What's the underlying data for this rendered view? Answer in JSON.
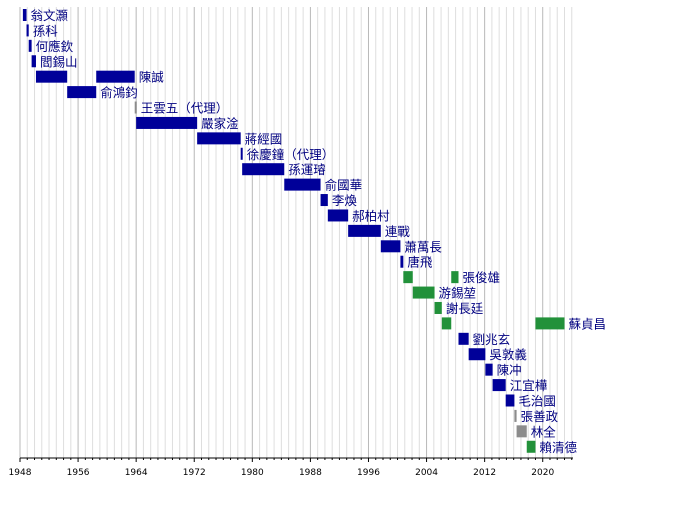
{
  "chart_data": {
    "type": "gantt",
    "title": "",
    "xlabel": "",
    "ylabel": "",
    "xlim": [
      1948,
      2024
    ],
    "x_ticks": [
      1948,
      1956,
      1964,
      1972,
      1980,
      1988,
      1996,
      2004,
      2012,
      2020
    ],
    "grid": "vertical, yearly",
    "legend": "none",
    "colors": {
      "kmt": "#000099",
      "dpp": "#22913a",
      "acting": "#8c8c8c",
      "label": "#000080"
    },
    "rows": [
      {
        "name": "翁文灝",
        "start": 1948.4,
        "end": 1948.9,
        "party": "kmt"
      },
      {
        "name": "孫科",
        "start": 1948.9,
        "end": 1949.2,
        "party": "kmt"
      },
      {
        "name": "何應欽",
        "start": 1949.2,
        "end": 1949.6,
        "party": "kmt"
      },
      {
        "name": "閻錫山",
        "start": 1949.6,
        "end": 1950.2,
        "party": "kmt"
      },
      {
        "name": "陳誠",
        "segments": [
          [
            1950.2,
            1954.5
          ],
          [
            1958.5,
            1963.8
          ]
        ],
        "party": "kmt"
      },
      {
        "name": "俞鴻鈞",
        "start": 1954.5,
        "end": 1958.5,
        "party": "kmt"
      },
      {
        "name": "王雲五（代理）",
        "start": 1963.8,
        "end": 1964.0,
        "party": "acting"
      },
      {
        "name": "嚴家淦",
        "start": 1964.0,
        "end": 1972.4,
        "party": "kmt"
      },
      {
        "name": "蔣經國",
        "start": 1972.4,
        "end": 1978.4,
        "party": "kmt"
      },
      {
        "name": "徐慶鐘（代理）",
        "start": 1978.4,
        "end": 1978.6,
        "party": "kmt"
      },
      {
        "name": "孫運璿",
        "start": 1978.6,
        "end": 1984.4,
        "party": "kmt"
      },
      {
        "name": "俞國華",
        "start": 1984.4,
        "end": 1989.4,
        "party": "kmt"
      },
      {
        "name": "李煥",
        "start": 1989.4,
        "end": 1990.4,
        "party": "kmt"
      },
      {
        "name": "郝柏村",
        "start": 1990.4,
        "end": 1993.2,
        "party": "kmt"
      },
      {
        "name": "連戰",
        "start": 1993.2,
        "end": 1997.7,
        "party": "kmt"
      },
      {
        "name": "蕭萬長",
        "start": 1997.7,
        "end": 2000.4,
        "party": "kmt"
      },
      {
        "name": "唐飛",
        "start": 2000.4,
        "end": 2000.8,
        "party": "kmt"
      },
      {
        "name": "張俊雄",
        "segments": [
          [
            2000.8,
            2002.1
          ],
          [
            2007.4,
            2008.4
          ]
        ],
        "party": "dpp"
      },
      {
        "name": "游錫堃",
        "start": 2002.1,
        "end": 2005.1,
        "party": "dpp"
      },
      {
        "name": "謝長廷",
        "start": 2005.1,
        "end": 2006.1,
        "party": "dpp"
      },
      {
        "name": "蘇貞昌",
        "segments": [
          [
            2006.1,
            2007.4
          ],
          [
            2019.0,
            2023.0
          ]
        ],
        "party": "dpp"
      },
      {
        "name": "劉兆玄",
        "start": 2008.4,
        "end": 2009.8,
        "party": "kmt"
      },
      {
        "name": "吳敦義",
        "start": 2009.8,
        "end": 2012.1,
        "party": "kmt"
      },
      {
        "name": "陳冲",
        "start": 2012.1,
        "end": 2013.1,
        "party": "kmt"
      },
      {
        "name": "江宜樺",
        "start": 2013.1,
        "end": 2014.9,
        "party": "kmt"
      },
      {
        "name": "毛治國",
        "start": 2014.9,
        "end": 2016.1,
        "party": "kmt"
      },
      {
        "name": "張善政",
        "start": 2016.1,
        "end": 2016.4,
        "party": "acting"
      },
      {
        "name": "林全",
        "start": 2016.4,
        "end": 2017.8,
        "party": "acting"
      },
      {
        "name": "賴清德",
        "start": 2017.8,
        "end": 2019.0,
        "party": "dpp"
      }
    ]
  }
}
